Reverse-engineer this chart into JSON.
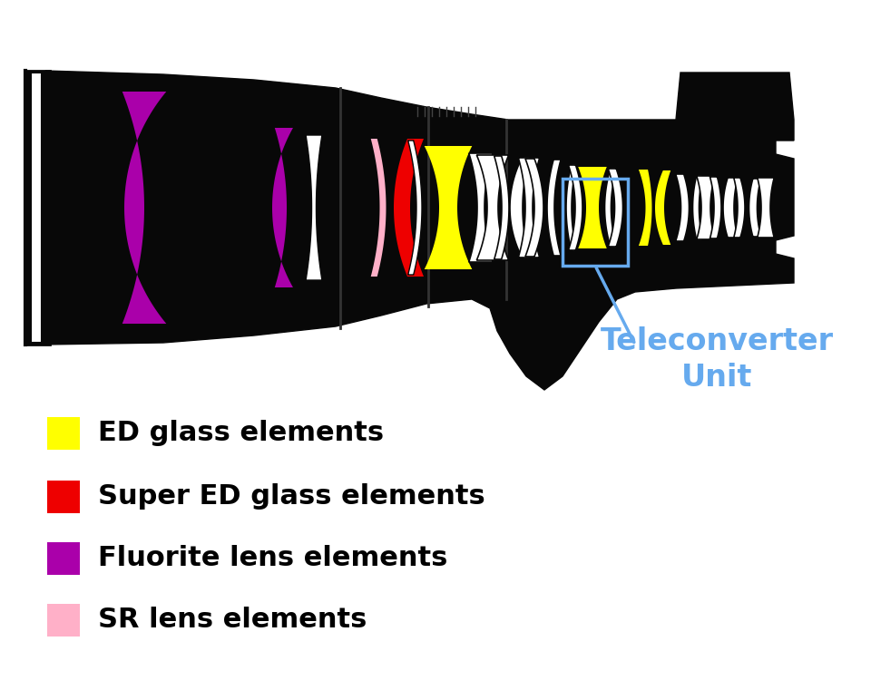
{
  "bg_color": "#ffffff",
  "black": "#080808",
  "white": "#ffffff",
  "ed_color": "#ffff00",
  "super_ed_color": "#ee0000",
  "fluorite_color": "#aa00aa",
  "sr_color": "#ffb0c8",
  "blue_annotation": "#66aaee",
  "legend_items": [
    {
      "color": "#ffff00",
      "label": "ED glass elements"
    },
    {
      "color": "#ee0000",
      "label": "Super ED glass elements"
    },
    {
      "color": "#aa00aa",
      "label": "Fluorite lens elements"
    },
    {
      "color": "#ffb0c8",
      "label": "SR lens elements"
    }
  ],
  "legend_fontsize": 22,
  "annotation_text_line1": "Teleconverter",
  "annotation_text_line2": "Unit",
  "annotation_fontsize": 24
}
